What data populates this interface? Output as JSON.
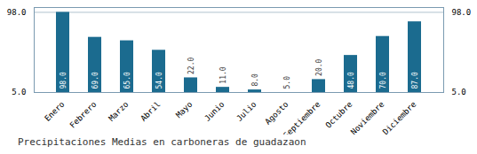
{
  "chart_data": {
    "type": "bar",
    "title": "Precipitaciones Medias en carboneras de guadazaon",
    "categories": [
      "Enero",
      "Febrero",
      "Marzo",
      "Abril",
      "Mayo",
      "Junio",
      "Julio",
      "Agosto",
      "Septiembre",
      "Octubre",
      "Noviembre",
      "Diciembre"
    ],
    "values": [
      98.0,
      69.0,
      65.0,
      54.0,
      22.0,
      11.0,
      8.0,
      5.0,
      20.0,
      48.0,
      70.0,
      87.0
    ],
    "value_labels": [
      "98.0",
      "69.0",
      "65.0",
      "54.0",
      "22.0",
      "11.0",
      "8.0",
      "5.0",
      "20.0",
      "48.0",
      "70.0",
      "87.0"
    ],
    "data_labels": true,
    "color": "#1b6b8f",
    "ylim": [
      5.0,
      103.58
    ],
    "yticks": [
      {
        "value": 5.0,
        "label": "5.0"
      },
      {
        "value": 98.0,
        "label": "98.0"
      }
    ],
    "grid": true
  }
}
